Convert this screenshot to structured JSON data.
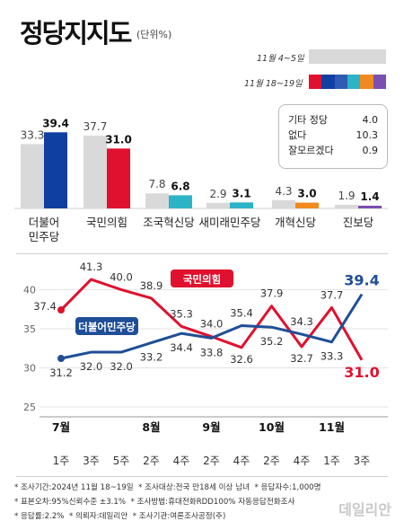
{
  "header": {
    "title": "정당지지도",
    "unit": "(단위%)"
  },
  "legend": {
    "prev_label": "11월 4~5일",
    "curr_label": "11월 18~19일"
  },
  "colors": {
    "prev": "#d9d9d9",
    "democratic": "#0f3fa0",
    "ppp": "#e0112e",
    "rebuilding": "#2db3c6",
    "new_future": "#2db3c6",
    "reform": "#f08a1e",
    "progressive": "#7a4fb0",
    "line_democratic": "#1f4e96",
    "line_ppp": "#e0112e"
  },
  "others": [
    {
      "label": "기타 정당",
      "value": "4.0"
    },
    {
      "label": "없다",
      "value": "10.3"
    },
    {
      "label": "잘모르겠다",
      "value": "0.9"
    }
  ],
  "chart_data": [
    {
      "type": "bar",
      "categories": [
        "더불어민주당",
        "국민의힘",
        "조국혁신당",
        "새미래민주당",
        "개혁신당",
        "진보당"
      ],
      "category_lines": [
        [
          "더불어",
          "민주당"
        ],
        [
          "국민의힘"
        ],
        [
          "조국혁신당"
        ],
        [
          "새미래민주당"
        ],
        [
          "개혁신당"
        ],
        [
          "진보당"
        ]
      ],
      "series": [
        {
          "name": "11월 4~5일",
          "values": [
            33.3,
            37.7,
            7.8,
            2.9,
            4.3,
            1.9
          ]
        },
        {
          "name": "11월 18~19일",
          "values": [
            39.4,
            31.0,
            6.8,
            3.1,
            3.0,
            1.4
          ]
        }
      ]
    },
    {
      "type": "line",
      "x": [
        "7월 1주",
        "3주",
        "5주",
        "8월 2주",
        "4주",
        "9월 2주",
        "4주",
        "10월 2주",
        "4주",
        "11월 1주",
        "3주"
      ],
      "x_ticks": [
        "1주",
        "3주",
        "5주",
        "2주",
        "4주",
        "2주",
        "4주",
        "2주",
        "4주",
        "1주",
        "3주"
      ],
      "month_labels": [
        {
          "label": "7월",
          "index": 0
        },
        {
          "label": "8월",
          "index": 3
        },
        {
          "label": "9월",
          "index": 5
        },
        {
          "label": "10월",
          "index": 7
        },
        {
          "label": "11월",
          "index": 9
        }
      ],
      "ylim": [
        25,
        42
      ],
      "yticks": [
        25,
        30,
        35,
        40
      ],
      "grid": true,
      "series": [
        {
          "name": "국민의힘",
          "values": [
            37.4,
            41.3,
            40.0,
            38.9,
            35.3,
            34.0,
            32.6,
            37.9,
            32.7,
            37.7,
            31.0
          ]
        },
        {
          "name": "더불어민주당",
          "values": [
            31.2,
            32.0,
            32.0,
            33.2,
            34.4,
            33.8,
            35.4,
            35.2,
            34.3,
            33.3,
            39.4
          ]
        }
      ]
    }
  ],
  "footnotes": [
    [
      "* 조사기간:2024년 11월 18~19일",
      "* 조사대상:전국 만18세 이상 남녀",
      "* 응답자수:1,000명"
    ],
    [
      "* 표본오차:95%신뢰수준 ±3.1%",
      "* 조사방법:휴대전화RDD100% 자동응답전화조사"
    ],
    [
      "* 응답률:2.2%",
      "* 의뢰자:데일리안",
      "* 조사기관:여론조사공정(주)"
    ]
  ],
  "watermark": "데일리안"
}
